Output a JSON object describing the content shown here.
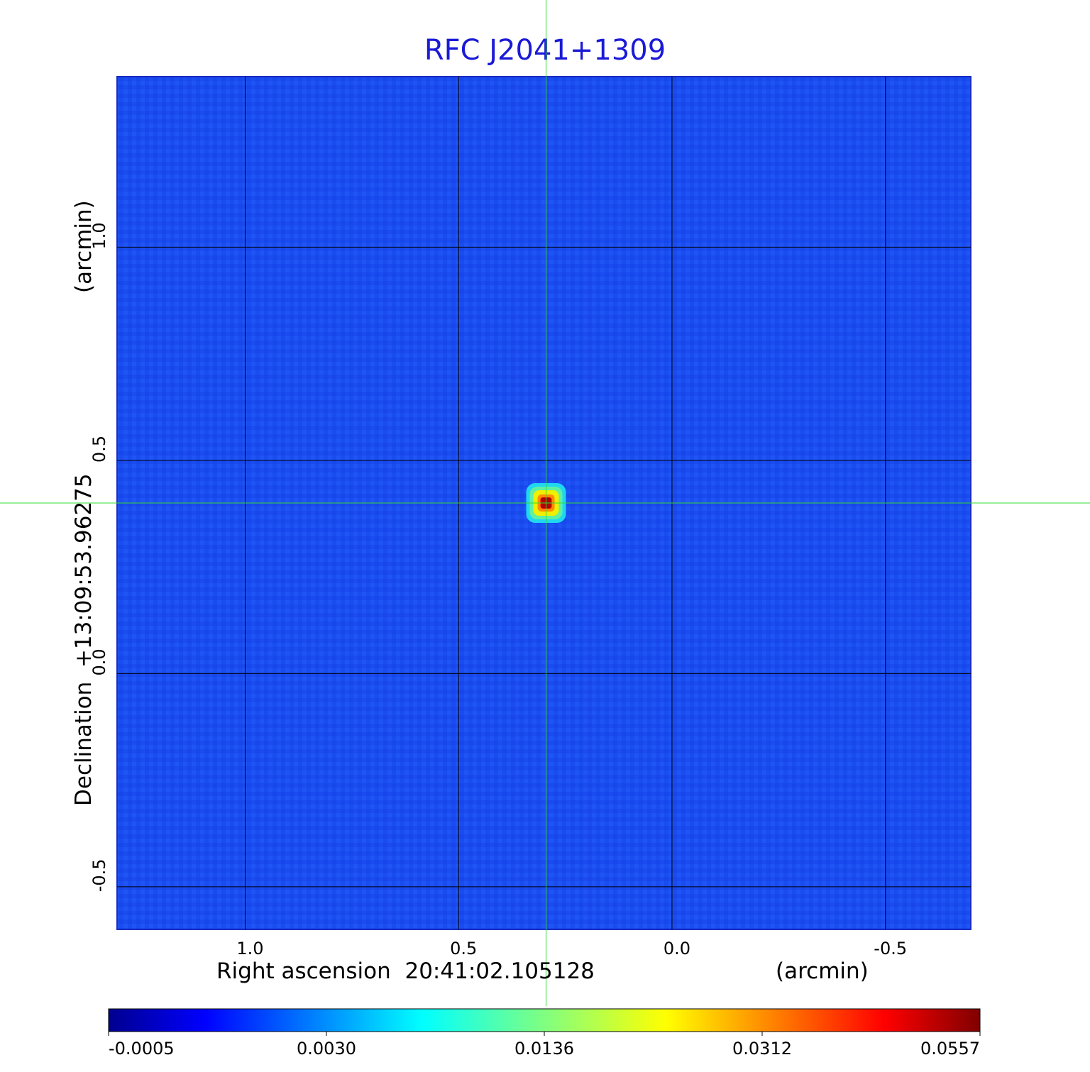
{
  "chart_data": {
    "type": "heatmap",
    "title": "RFC J2041+1309",
    "xlabel": "Right ascension  20:41:02.105128",
    "xunit": "(arcmin)",
    "ylabel": "Declination  +13:09:53.96275",
    "yunit": "(arcmin)",
    "xlim": [
      1.3,
      -0.7
    ],
    "ylim": [
      -0.6,
      1.4
    ],
    "x_ticks": [
      1.0,
      0.5,
      0.0,
      -0.5
    ],
    "x_tick_labels": [
      "1.0",
      "0.5",
      "0.0",
      "-0.5"
    ],
    "y_ticks": [
      1.0,
      0.5,
      0.0,
      -0.5
    ],
    "y_tick_labels": [
      "1.0",
      "0.5",
      "0.0",
      "-0.5"
    ],
    "grid": true,
    "source_peak": {
      "x": 0.295,
      "y": 0.4,
      "value": 0.0557
    },
    "crosshair": {
      "x": 0.295,
      "y": 0.4
    },
    "colorbar": {
      "orientation": "horizontal",
      "colormap": "jet",
      "tick_labels": [
        "-0.0005",
        "0.0030",
        "0.0136",
        "0.0312",
        "0.0557"
      ]
    },
    "colors": {
      "title": "#1a1ad6",
      "crosshair": "#33dd33",
      "grid": "#000000",
      "background_map": "#1a4cf0"
    }
  }
}
